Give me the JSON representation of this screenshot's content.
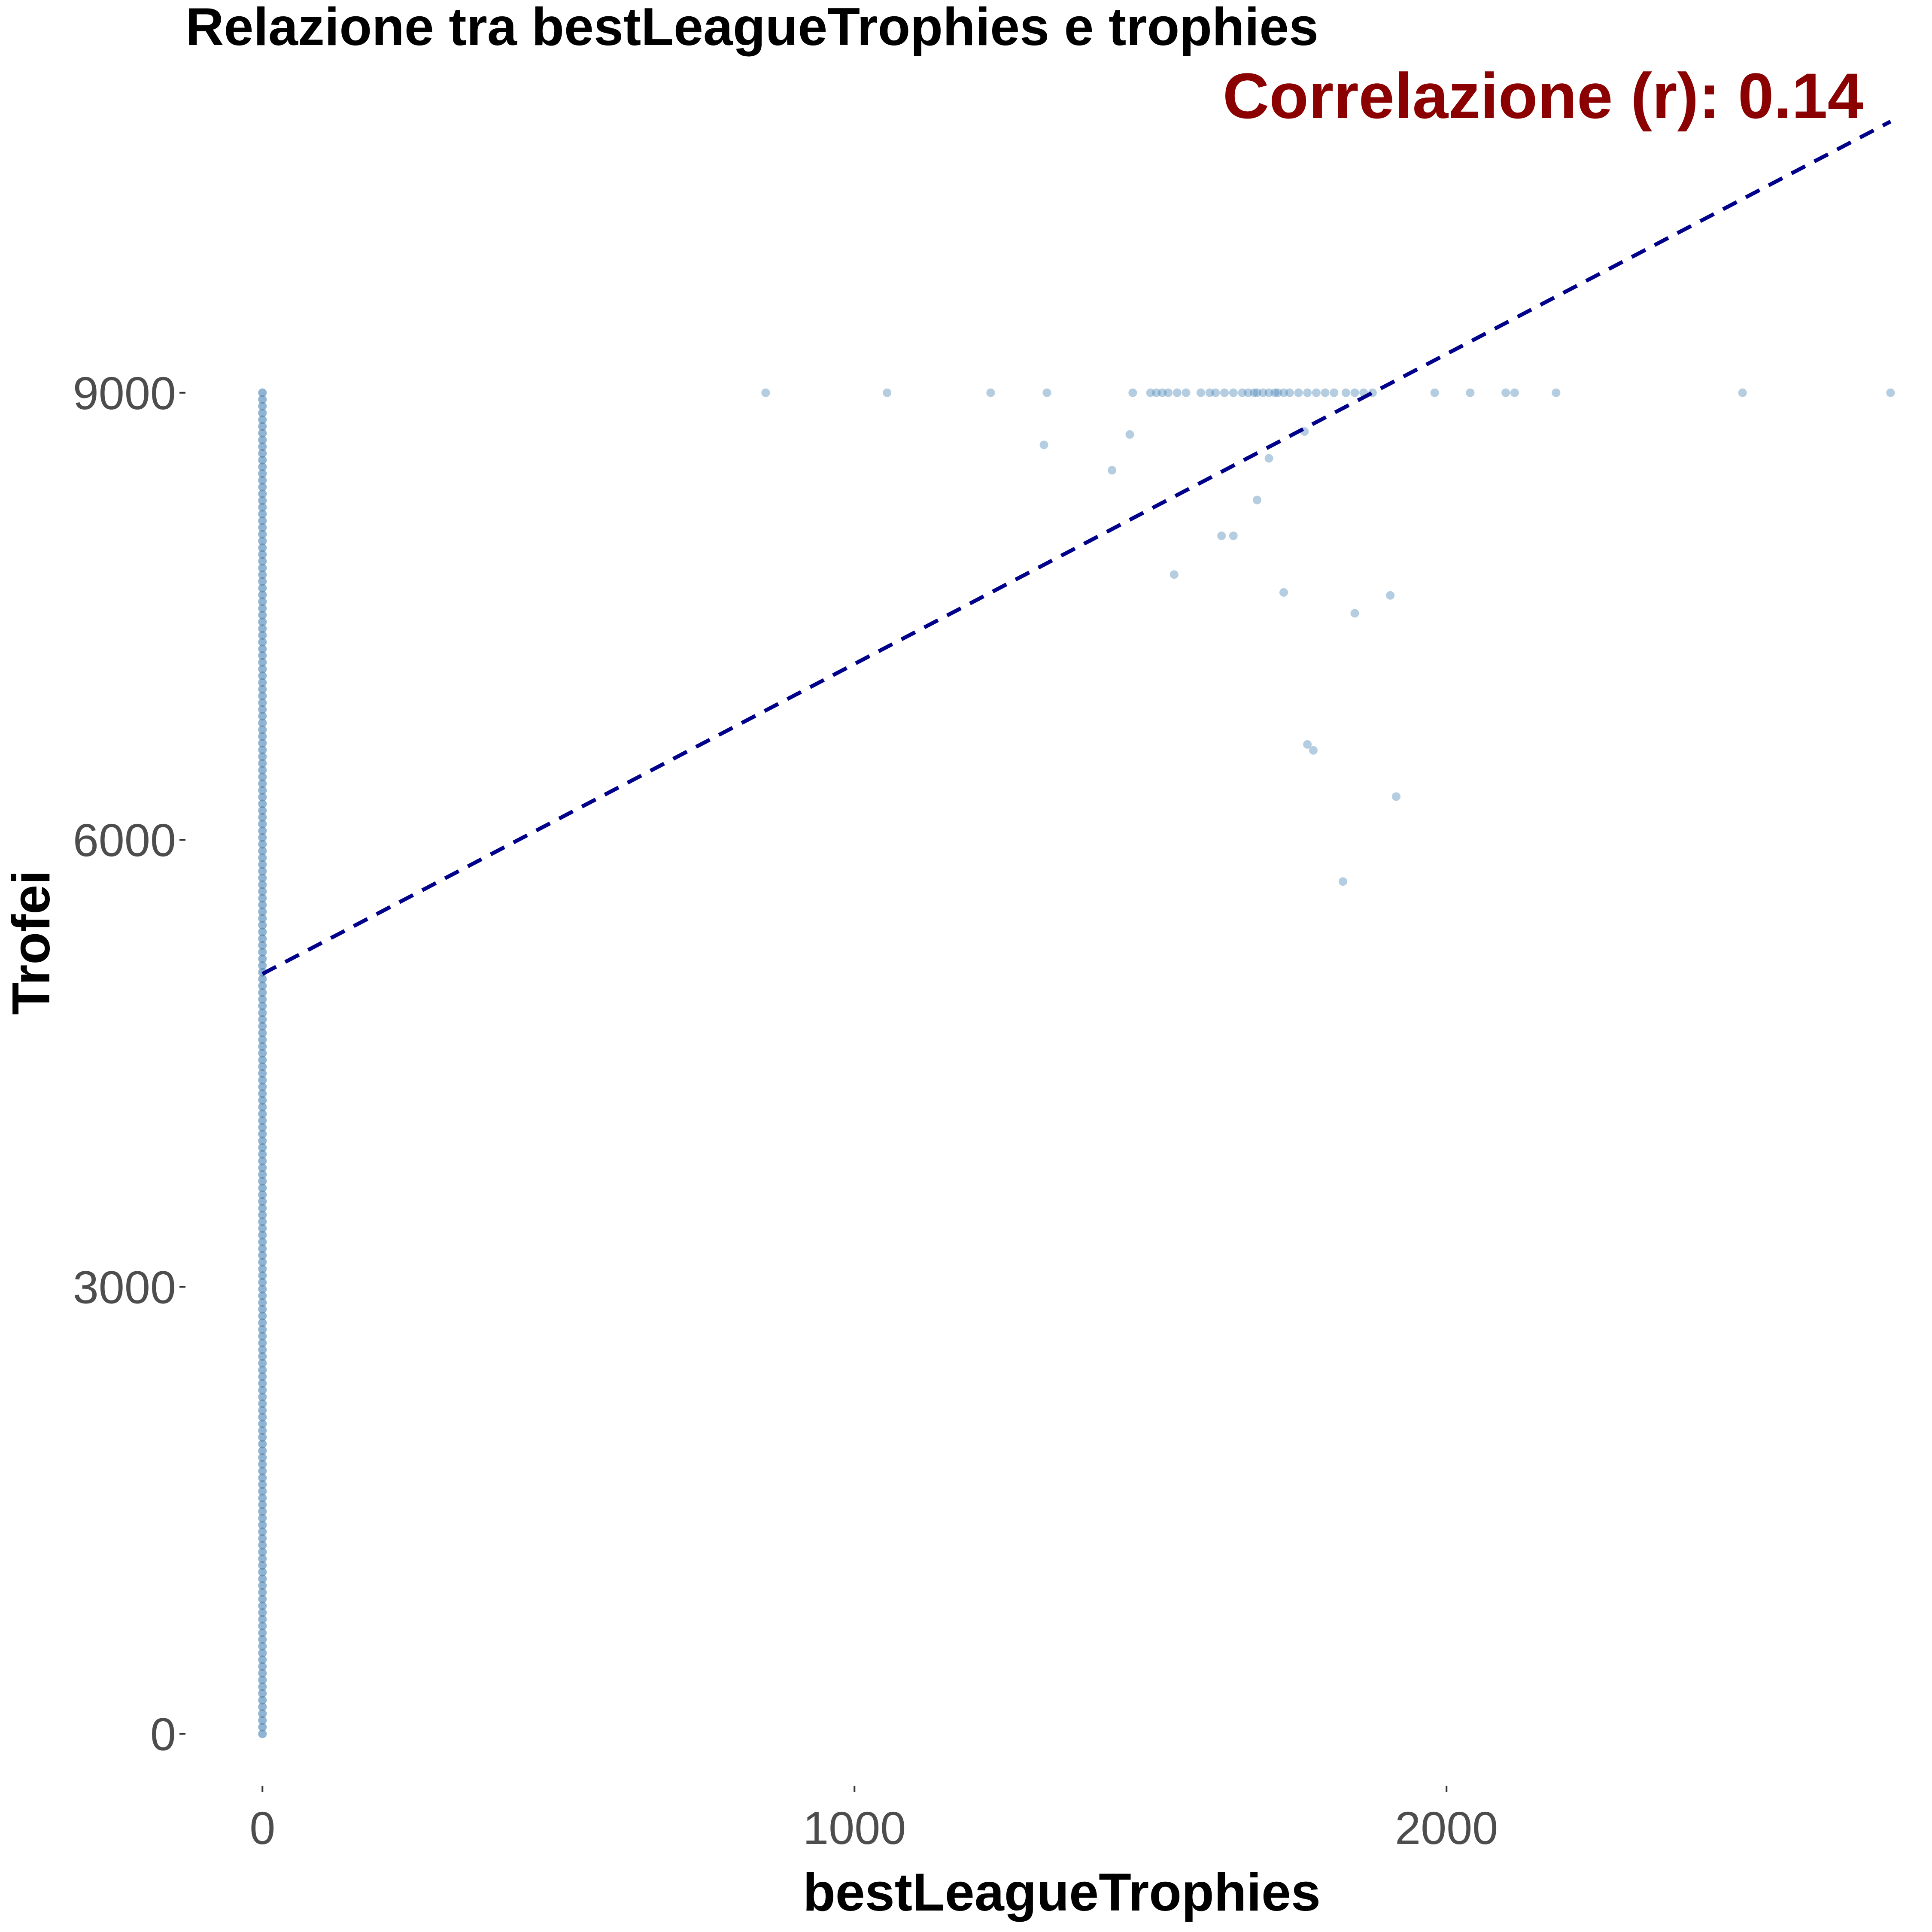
{
  "chart_data": {
    "type": "scatter",
    "title": "Relazione tra bestLeagueTrophies e trophies",
    "annotation": "Correlazione (r): 0.14",
    "xlabel": "bestLeagueTrophies",
    "ylabel": "Trofei",
    "xlim": [
      -130,
      2820
    ],
    "ylim": [
      -350,
      10800
    ],
    "x_ticks": [
      0,
      1000,
      2000
    ],
    "x_tick_labels": [
      "0",
      "1000",
      "2000"
    ],
    "y_ticks": [
      0,
      3000,
      6000,
      9000
    ],
    "y_tick_labels": [
      "0",
      "3000",
      "6000",
      "9000"
    ],
    "grid": false,
    "legend": "none",
    "colors": {
      "points": "#4682b4",
      "trend_line": "#00008b",
      "annotation": "#8b0000",
      "tick_text": "#4d4d4d"
    },
    "series": [
      {
        "points_x0_range": [
          0,
          9000
        ],
        "points_x0_count": 200,
        "points": [
          [
            850,
            9000
          ],
          [
            1055,
            9000
          ],
          [
            1230,
            9000
          ],
          [
            1325,
            9000
          ],
          [
            1470,
            9000
          ],
          [
            1500,
            9000
          ],
          [
            1510,
            9000
          ],
          [
            1520,
            9000
          ],
          [
            1530,
            9000
          ],
          [
            1545,
            9000
          ],
          [
            1560,
            9000
          ],
          [
            1585,
            9000
          ],
          [
            1600,
            9000
          ],
          [
            1610,
            9000
          ],
          [
            1625,
            9000
          ],
          [
            1640,
            9000
          ],
          [
            1655,
            9000
          ],
          [
            1665,
            9000
          ],
          [
            1675,
            9000
          ],
          [
            1680,
            9000
          ],
          [
            1690,
            9000
          ],
          [
            1700,
            9000
          ],
          [
            1710,
            9000
          ],
          [
            1715,
            9000
          ],
          [
            1725,
            9000
          ],
          [
            1735,
            9000
          ],
          [
            1750,
            9000
          ],
          [
            1765,
            9000
          ],
          [
            1780,
            9000
          ],
          [
            1795,
            9000
          ],
          [
            1810,
            9000
          ],
          [
            1830,
            9000
          ],
          [
            1845,
            9000
          ],
          [
            1860,
            9000
          ],
          [
            1875,
            9000
          ],
          [
            1980,
            9000
          ],
          [
            2040,
            9000
          ],
          [
            2100,
            9000
          ],
          [
            2115,
            9000
          ],
          [
            2185,
            9000
          ],
          [
            2500,
            9000
          ],
          [
            2750,
            9000
          ],
          [
            1320,
            8650
          ],
          [
            1465,
            8720
          ],
          [
            1435,
            8480
          ],
          [
            1700,
            8560
          ],
          [
            1760,
            8740
          ],
          [
            1680,
            8280
          ],
          [
            1620,
            8040
          ],
          [
            1640,
            8040
          ],
          [
            1540,
            7780
          ],
          [
            1725,
            7660
          ],
          [
            1905,
            7640
          ],
          [
            1845,
            7520
          ],
          [
            1765,
            6640
          ],
          [
            1775,
            6600
          ],
          [
            1915,
            6290
          ],
          [
            1825,
            5720
          ]
        ]
      }
    ],
    "trend_line": {
      "x": [
        0,
        2750
      ],
      "y": [
        5100,
        10820
      ]
    }
  }
}
